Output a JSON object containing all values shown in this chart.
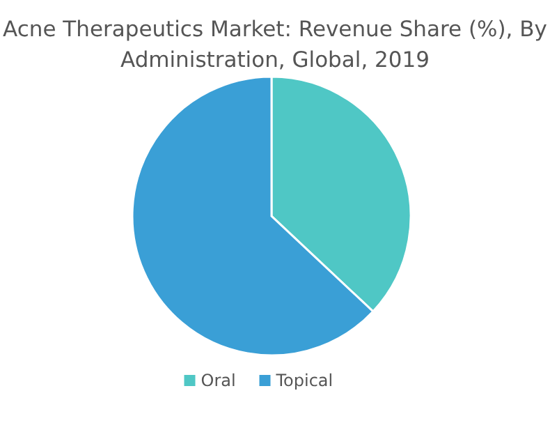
{
  "chart_data": {
    "type": "pie",
    "title": "Acne Therapeutics Market: Revenue Share (%), By Administration, Global, 2019",
    "categories": [
      "Oral",
      "Topical"
    ],
    "values": [
      37,
      63
    ],
    "colors": [
      "#4fc7c5",
      "#3a9fd6"
    ],
    "legend": "bottom"
  }
}
